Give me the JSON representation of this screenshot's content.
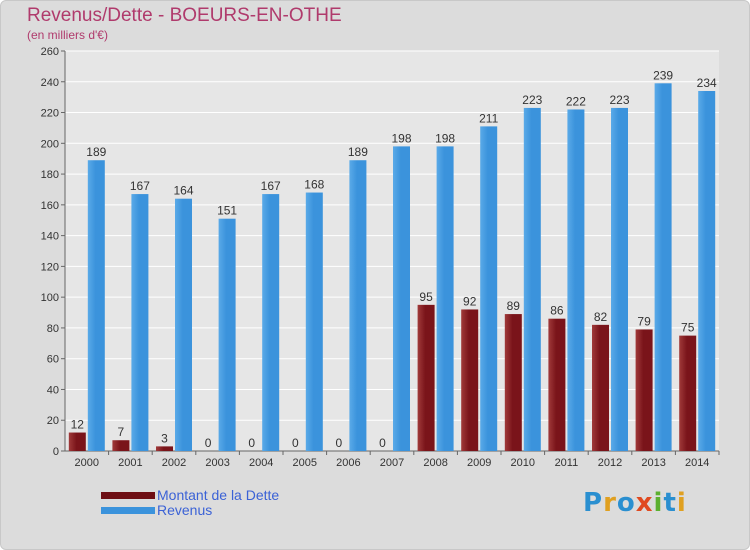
{
  "title": "Revenus/Dette - BOEURS-EN-OTHE",
  "subtitle": "(en milliers d'€)",
  "brand": "Proxiti",
  "colors": {
    "dette": "#6e0e14",
    "revenus": "#3b93dc",
    "plot_bg": "#e6e6e6",
    "grid": "#ffffff",
    "title": "#b03a6c"
  },
  "chart_data": {
    "type": "bar",
    "title": "Revenus/Dette - BOEURS-EN-OTHE",
    "ylabel": "(en milliers d'€)",
    "ylim": [
      0,
      260
    ],
    "yticks": [
      0,
      20,
      40,
      60,
      80,
      100,
      120,
      140,
      160,
      180,
      200,
      220,
      240,
      260
    ],
    "grid": true,
    "legend": "bottom-left",
    "categories": [
      "2000",
      "2001",
      "2002",
      "2003",
      "2004",
      "2005",
      "2006",
      "2007",
      "2008",
      "2009",
      "2010",
      "2011",
      "2012",
      "2013",
      "2014"
    ],
    "series": [
      {
        "name": "Montant de la Dette",
        "color": "#6e0e14",
        "values": [
          12,
          7,
          3,
          0,
          0,
          0,
          0,
          0,
          95,
          92,
          89,
          86,
          82,
          79,
          75
        ]
      },
      {
        "name": "Revenus",
        "color": "#3b93dc",
        "values": [
          189,
          167,
          164,
          151,
          167,
          168,
          189,
          198,
          198,
          211,
          223,
          222,
          223,
          239,
          234
        ]
      }
    ]
  }
}
